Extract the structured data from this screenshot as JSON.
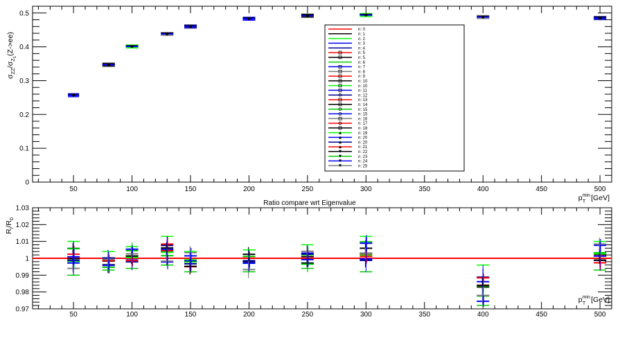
{
  "chart_data": [
    {
      "type": "scatter",
      "panel": "top",
      "title": "",
      "ylabel": "σ_ZZ/σ_Z1(Z->ee)",
      "ylabel_main": "σ",
      "ylabel_sub1": "ZZ",
      "ylabel_mid": "/σ",
      "ylabel_sub2": "Z",
      "ylabel_sub3": "1",
      "ylabel_tail": "(Z->ee)",
      "xlabel": "p_T^min [GeV]",
      "xlabel_p": "p",
      "xlabel_sup": "min",
      "xlabel_sub": "T",
      "xlabel_unit": "[GeV]",
      "xlim": [
        15,
        510
      ],
      "ylim": [
        0,
        0.52
      ],
      "xticks": [
        50,
        100,
        150,
        200,
        250,
        300,
        350,
        400,
        450,
        500
      ],
      "xtick_labels": [
        "50",
        "100",
        "150",
        "200",
        "250",
        "300",
        "350",
        "400",
        "450",
        "500"
      ],
      "yticks": [
        0,
        0.1,
        0.2,
        0.3,
        0.4,
        0.5
      ],
      "ytick_labels": [
        "0",
        "0.1",
        "0.2",
        "0.3",
        "0.4",
        "0.5"
      ],
      "x": [
        50,
        80,
        100,
        130,
        150,
        200,
        250,
        300,
        400,
        500
      ],
      "values": [
        0.257,
        0.347,
        0.401,
        0.438,
        0.46,
        0.483,
        0.492,
        0.494,
        0.488,
        0.485
      ],
      "legend_position": "center",
      "legend": [
        "n: 0",
        "n: 1",
        "n: 2",
        "n: 3",
        "n: 4",
        "n: 5",
        "n: 5",
        "n: 6",
        "n: 7",
        "n: 8",
        "n: 9",
        "n: 10",
        "n: 10",
        "n: 11",
        "n: 12",
        "n: 13",
        "n: 14",
        "n: 15",
        "n: 15",
        "n: 16",
        "n: 17",
        "n: 18",
        "n: 19",
        "n: 20",
        "n: 20",
        "n: 21",
        "n: 22",
        "n: 23",
        "n: 24",
        "n: 25"
      ]
    },
    {
      "type": "scatter",
      "panel": "bottom",
      "title": "Ratio compare wrt Eigenvalue",
      "ylabel": "R_i/R_0",
      "ylabel_R1": "R",
      "ylabel_i": "i",
      "ylabel_R2": "/R",
      "ylabel_0": "0",
      "xlabel": "p_T^min [GeV]",
      "xlim": [
        15,
        510
      ],
      "ylim": [
        0.97,
        1.03
      ],
      "xticks": [
        50,
        100,
        150,
        200,
        250,
        300,
        350,
        400,
        450,
        500
      ],
      "xtick_labels": [
        "50",
        "100",
        "150",
        "200",
        "250",
        "300",
        "350",
        "400",
        "450",
        "500"
      ],
      "yticks": [
        0.97,
        0.98,
        0.99,
        1.0,
        1.01,
        1.02,
        1.03
      ],
      "ytick_labels": [
        "0.97",
        "0.98",
        "0.99",
        "1",
        "1.01",
        "1.02",
        "1.03"
      ],
      "reference_line": 1.0,
      "x": [
        50,
        80,
        100,
        130,
        150,
        200,
        250,
        300,
        400,
        500
      ],
      "value_ranges": [
        [
          0.99,
          1.01
        ],
        [
          0.993,
          1.004
        ],
        [
          0.994,
          1.007
        ],
        [
          0.996,
          1.013
        ],
        [
          0.992,
          1.004
        ],
        [
          0.992,
          1.005
        ],
        [
          0.994,
          1.008
        ],
        [
          0.992,
          1.013
        ],
        [
          0.972,
          0.996
        ],
        [
          0.993,
          1.01
        ]
      ]
    }
  ],
  "colors": {
    "series": [
      "#ff0000",
      "#000000",
      "#00ff00",
      "#0000ff",
      "#000099",
      "#ff0000",
      "#000000",
      "#00cc00",
      "#0000ff",
      "#7f7f7f"
    ],
    "reference_line": "#ff0000",
    "top_markers": [
      "#0000ff",
      "#000000",
      "#00ff00",
      "#7f7f7f",
      "#000099"
    ]
  }
}
